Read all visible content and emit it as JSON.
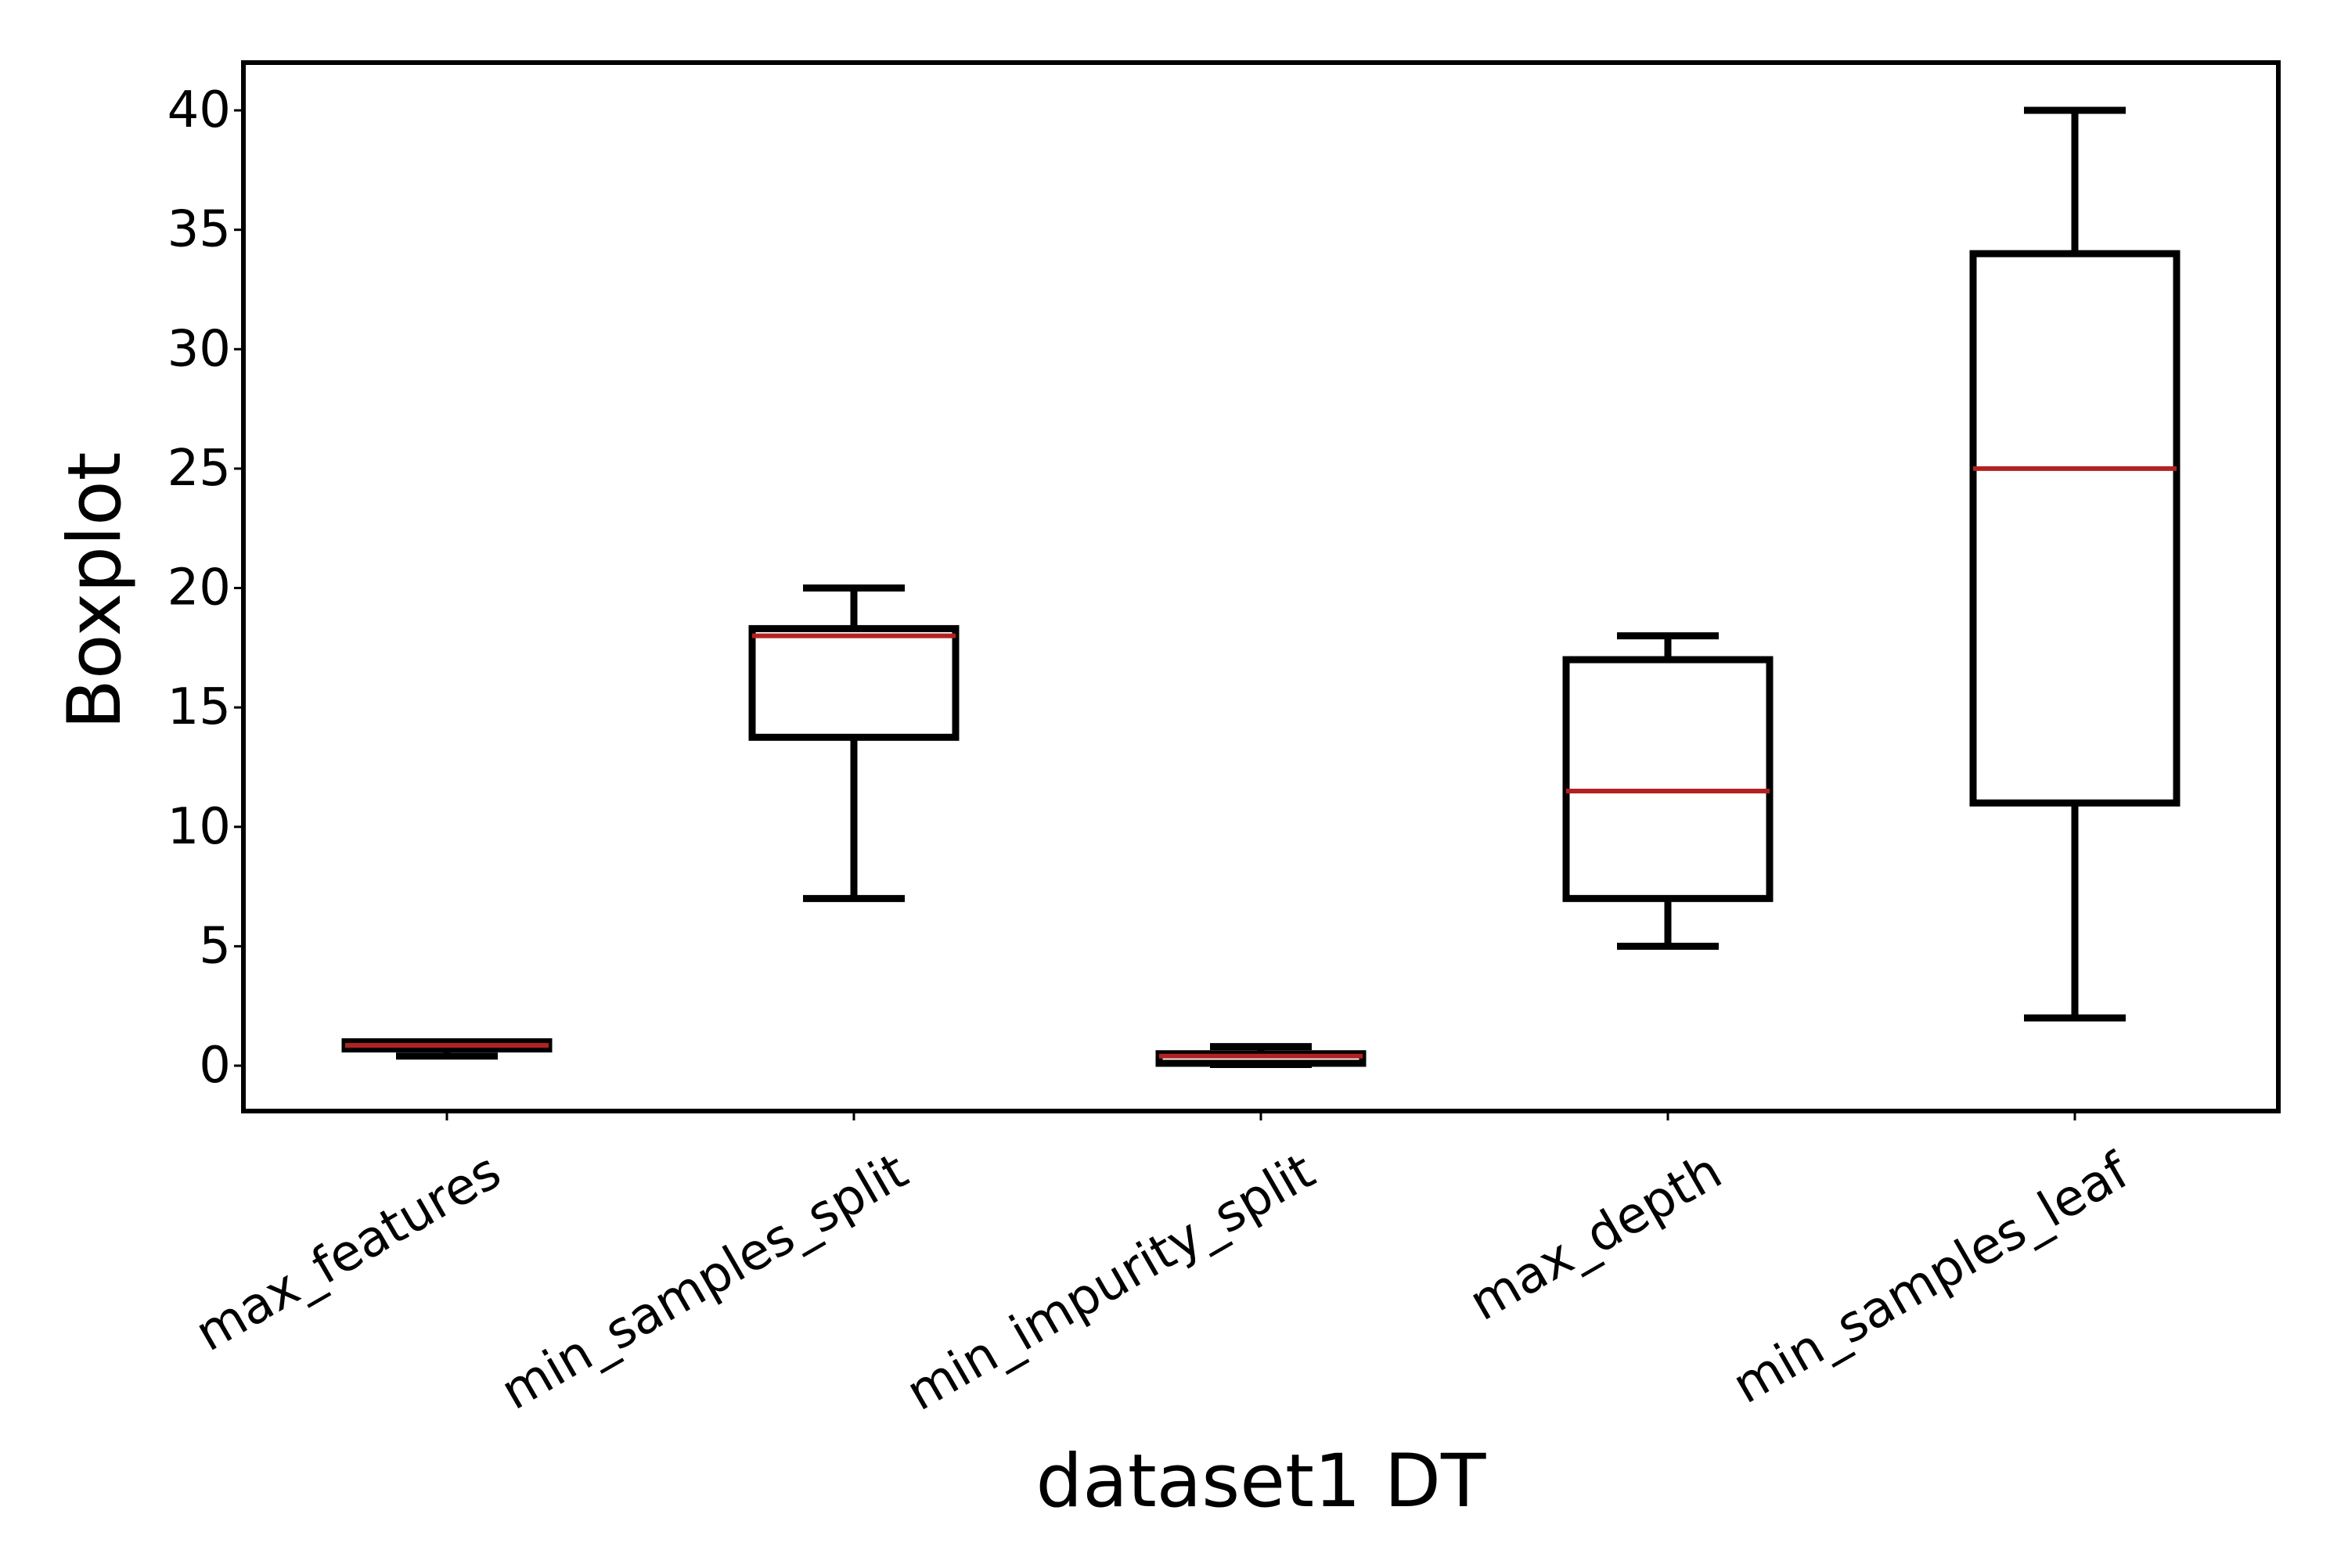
{
  "chart_data": {
    "type": "box",
    "xlabel": "dataset1 DT",
    "ylabel": "Boxplot",
    "ylim": [
      -1.9,
      42
    ],
    "yticks": [
      0,
      5,
      10,
      15,
      20,
      25,
      30,
      35,
      40
    ],
    "grid": false,
    "categories": [
      "max_features",
      "min_samples_split",
      "min_impurity_split",
      "max_depth",
      "min_samples_leaf"
    ],
    "boxes": [
      {
        "category": "max_features",
        "whisker_low": 0.4,
        "q1": 0.7,
        "median": 0.85,
        "q3": 1.0,
        "whisker_high": 1.0
      },
      {
        "category": "min_samples_split",
        "whisker_low": 7,
        "q1": 13.75,
        "median": 18,
        "q3": 18.3,
        "whisker_high": 20
      },
      {
        "category": "min_impurity_split",
        "whisker_low": 0.05,
        "q1": 0.1,
        "median": 0.4,
        "q3": 0.5,
        "whisker_high": 0.8
      },
      {
        "category": "max_depth",
        "whisker_low": 5,
        "q1": 7,
        "median": 11.5,
        "q3": 17,
        "whisker_high": 18
      },
      {
        "category": "min_samples_leaf",
        "whisker_low": 2,
        "q1": 11,
        "median": 25,
        "q3": 34,
        "whisker_high": 40
      }
    ],
    "colors": {
      "box": "#000000",
      "median": "#b22222",
      "axes": "#000000"
    }
  }
}
